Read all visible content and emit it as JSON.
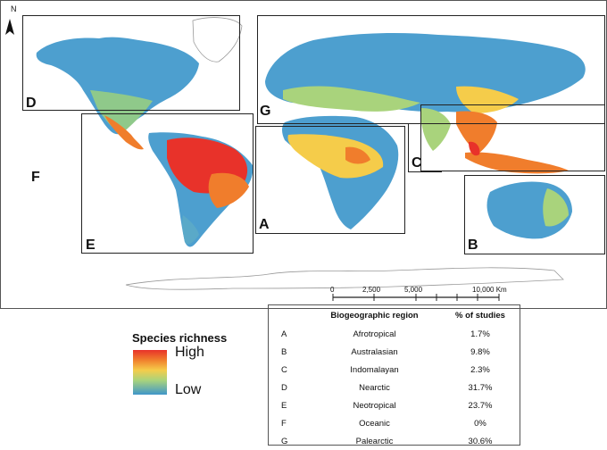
{
  "map": {
    "north_arrow": "N",
    "region_letters": {
      "A": "A",
      "B": "B",
      "C": "C",
      "D": "D",
      "E": "E",
      "F": "F",
      "G": "G"
    },
    "scale_bar": [
      "0",
      "2,500",
      "5,000",
      "10,000 Km"
    ]
  },
  "legend": {
    "title": "Species richness",
    "high_label": "High",
    "low_label": "Low",
    "colors": [
      "#e8322a",
      "#f07d2c",
      "#f5cc4a",
      "#a9d37c",
      "#3f96c9"
    ]
  },
  "table": {
    "headers": [
      "",
      "Biogeographic region",
      "% of studies"
    ],
    "rows": [
      {
        "code": "A",
        "region": "Afrotropical",
        "pct": "1.7%"
      },
      {
        "code": "B",
        "region": "Australasian",
        "pct": "9.8%"
      },
      {
        "code": "C",
        "region": "Indomalayan",
        "pct": "2.3%"
      },
      {
        "code": "D",
        "region": "Nearctic",
        "pct": "31.7%"
      },
      {
        "code": "E",
        "region": "Neotropical",
        "pct": "23.7%"
      },
      {
        "code": "F",
        "region": "Oceanic",
        "pct": "0%"
      },
      {
        "code": "G",
        "region": "Palearctic",
        "pct": "30.6%"
      }
    ]
  }
}
